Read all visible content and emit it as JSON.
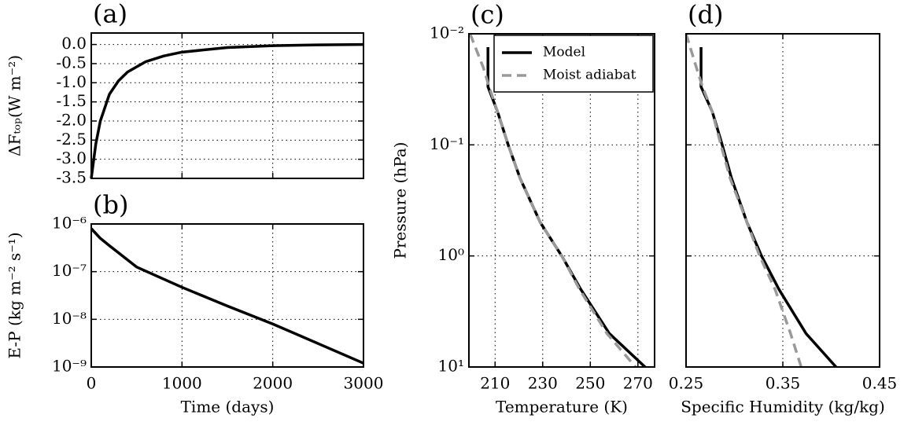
{
  "chart_data": [
    {
      "type": "line",
      "title": "(a)",
      "ylabel": "ΔFₜₒₚ(W m⁻²)",
      "color": "#000000",
      "x": [
        0,
        50,
        100,
        200,
        300,
        400,
        600,
        800,
        1000,
        1500,
        2000,
        2500,
        3000
      ],
      "values": [
        -3.5,
        -2.6,
        -2.0,
        -1.3,
        -0.95,
        -0.72,
        -0.45,
        -0.3,
        -0.2,
        -0.08,
        -0.03,
        -0.01,
        0.0
      ],
      "xlim": [
        0,
        3000
      ],
      "xticks": [
        0,
        1000,
        2000,
        3000
      ],
      "xtick_labels": false,
      "ylim": [
        -3.5,
        0.3
      ],
      "yticks": [
        {
          "value": 0,
          "label": "0.0"
        },
        -0.5,
        {
          "value": -1,
          "label": "-1.0"
        },
        -1.5,
        {
          "value": -2,
          "label": "-2.0"
        },
        -2.5,
        {
          "value": -3,
          "label": "-3.0"
        },
        -3.5
      ],
      "grid": true
    },
    {
      "type": "line",
      "title": "(b)",
      "xlabel": "Time (days)",
      "ylabel": "E-P (kg m⁻² s⁻¹)",
      "color": "#000000",
      "x": [
        0,
        100,
        200,
        500,
        1000,
        1500,
        2000,
        2500,
        3000
      ],
      "values": [
        8e-07,
        5e-07,
        3.5e-07,
        1.25e-07,
        4.7e-08,
        1.9e-08,
        8e-09,
        3.1e-09,
        1.2e-09
      ],
      "xlim": [
        0,
        3000
      ],
      "xticks": [
        0,
        1000,
        2000,
        3000
      ],
      "ylim": [
        1e-09,
        1e-06
      ],
      "ylog": true,
      "yticks": [
        {
          "value": 1e-09,
          "label": "10⁻⁹"
        },
        {
          "value": 1e-08,
          "label": "10⁻⁸"
        },
        {
          "value": 1e-07,
          "label": "10⁻⁷"
        },
        {
          "value": 1e-06,
          "label": "10⁻⁶"
        }
      ],
      "grid": true
    },
    {
      "type": "line",
      "title": "(c)",
      "xlabel": "Temperature (K)",
      "ylabel": "Pressure (hPa)",
      "series": [
        {
          "name": "Model",
          "color": "#000000",
          "dash": false,
          "x": [
            207,
            207,
            211,
            215.5,
            220.5,
            229,
            238,
            246,
            258,
            273
          ],
          "y": [
            0.0132,
            0.03,
            0.05,
            0.1,
            0.2,
            0.5,
            1,
            2,
            5,
            10
          ]
        },
        {
          "name": "Moist adiabat",
          "color": "#999999",
          "dash": true,
          "x": [
            199.5,
            205,
            207.5,
            211,
            215.5,
            220.5,
            229,
            238,
            245.5,
            257,
            269
          ],
          "y": [
            0.01,
            0.02,
            0.03,
            0.05,
            0.1,
            0.2,
            0.5,
            1,
            2,
            5,
            10
          ]
        }
      ],
      "xlim": [
        199,
        277
      ],
      "xticks": [
        210,
        230,
        250,
        270
      ],
      "ylim": [
        0.01,
        10
      ],
      "ylog": true,
      "yreversed": true,
      "yticks": [
        {
          "value": 0.01,
          "label": "10⁻²"
        },
        {
          "value": 0.1,
          "label": "10⁻¹"
        },
        {
          "value": 1,
          "label": "10⁰"
        },
        {
          "value": 10,
          "label": "10¹"
        }
      ],
      "grid": true,
      "legend": "upper right"
    },
    {
      "type": "line",
      "title": "(d)",
      "xlabel": "Specific Humidity (kg/kg)",
      "series": [
        {
          "color": "#000000",
          "dash": false,
          "x": [
            0.2655,
            0.2655,
            0.277,
            0.2874,
            0.297,
            0.313,
            0.328,
            0.346,
            0.374,
            0.405
          ],
          "y": [
            0.0132,
            0.03,
            0.05,
            0.1,
            0.2,
            0.5,
            1,
            2,
            5,
            10
          ]
        },
        {
          "color": "#999999",
          "dash": true,
          "x": [
            0.25,
            0.2606,
            0.267,
            0.277,
            0.286,
            0.2955,
            0.313,
            0.326,
            0.342,
            0.358,
            0.369
          ],
          "y": [
            0.01,
            0.02,
            0.03,
            0.05,
            0.1,
            0.2,
            0.5,
            1,
            2,
            5,
            10
          ]
        }
      ],
      "xlim": [
        0.25,
        0.45
      ],
      "xticks": [
        0.25,
        0.35,
        0.45
      ],
      "ylim": [
        0.01,
        10
      ],
      "ylog": true,
      "yreversed": true,
      "yticks": [
        {
          "value": 0.01,
          "label": "10⁻²"
        },
        {
          "value": 0.1,
          "label": "10⁻¹"
        },
        {
          "value": 1,
          "label": "10⁰"
        },
        {
          "value": 10,
          "label": "10¹"
        }
      ],
      "ytick_labels": false,
      "grid": true
    }
  ]
}
